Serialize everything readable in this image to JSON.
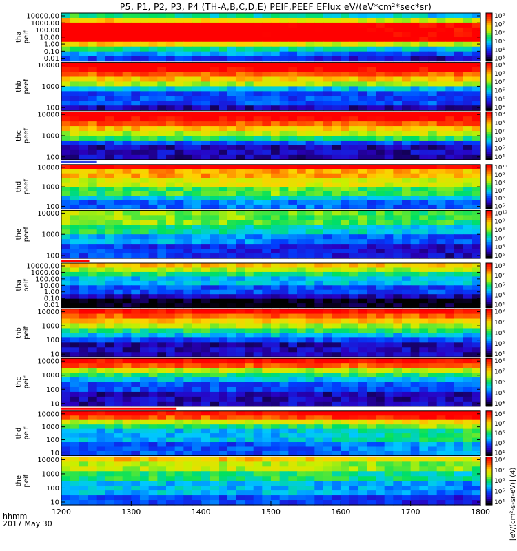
{
  "title": "P5, P1, P2, P3, P4 (TH-A,B,C,D,E) PEIF,PEEF EFlux eV/(eV*cm²*sec*sr)",
  "time_axis": {
    "label": "hhmm",
    "date": "2017 May 30",
    "ticks": [
      "1200",
      "1300",
      "1400",
      "1500",
      "1600",
      "1700",
      "1800"
    ]
  },
  "colorbar_label": "[eV/(cm²-s-sr-eV)] (4)",
  "colors": {
    "background": "#ffffff",
    "colormap": [
      "#000000",
      "#2a00c0",
      "#0040ff",
      "#00c8ff",
      "#00e060",
      "#c8f000",
      "#ffd000",
      "#ff5000",
      "#ff0000"
    ]
  },
  "chart_data": {
    "type": "heatmap",
    "x_range": [
      1200,
      1800
    ],
    "y_scale": "log",
    "panels": [
      {
        "name": "tha peif",
        "label": [
          "tha",
          "peif"
        ],
        "yticks": [
          "10000.00",
          "1000.00",
          "100.00",
          "10.00",
          "1.00",
          "0.10",
          "0.01"
        ],
        "cbar_ticks": [
          "10⁸",
          "10⁷",
          "10⁶",
          "10⁵",
          "10⁴",
          "10³"
        ],
        "profile": [
          4,
          6,
          9,
          9,
          9,
          9,
          6,
          4,
          3,
          2
        ],
        "trend": [
          0,
          -0.5,
          -1
        ],
        "bar": false
      },
      {
        "name": "thb peef",
        "label": [
          "thb",
          "peef"
        ],
        "yticks": [
          "10000",
          "1000",
          "100"
        ],
        "cbar_ticks": [
          "10⁹",
          "10⁸",
          "10⁷",
          "10⁶",
          "10⁵",
          "10⁴"
        ],
        "profile": [
          9,
          8,
          7,
          6,
          5,
          3,
          2,
          2,
          2,
          1
        ],
        "trend": [
          0,
          0,
          0
        ],
        "bar": false
      },
      {
        "name": "thc peef",
        "label": [
          "thc",
          "peef"
        ],
        "yticks": [
          "10000",
          "1000",
          "100"
        ],
        "cbar_ticks": [
          "10⁹",
          "10⁸",
          "10⁷",
          "10⁶",
          "10⁵",
          "10⁴"
        ],
        "profile": [
          9,
          8,
          7,
          6,
          5,
          4,
          2,
          1,
          1,
          1
        ],
        "trend": [
          0,
          0,
          0
        ],
        "bar": false
      },
      {
        "name": "thd peef",
        "label": [
          "thd",
          "peef"
        ],
        "yticks": [
          "10000",
          "1000",
          "100"
        ],
        "cbar_ticks": [
          "10¹⁰",
          "10⁹",
          "10⁸",
          "10⁷",
          "10⁶",
          "10⁵"
        ],
        "profile": [
          8,
          6,
          6,
          5,
          5,
          4,
          4,
          3,
          2,
          2
        ],
        "trend": [
          0,
          0.5,
          0
        ],
        "bar": true,
        "bar_end": 1250,
        "bar_color": "#3040e0"
      },
      {
        "name": "the peef",
        "label": [
          "the",
          "peef"
        ],
        "yticks": [
          "10000",
          "1000",
          "100"
        ],
        "cbar_ticks": [
          "10¹⁰",
          "10⁹",
          "10⁸",
          "10⁷",
          "10⁶",
          "10⁵"
        ],
        "profile": [
          5,
          5,
          5,
          4,
          4,
          3,
          3,
          2,
          2,
          2
        ],
        "trend": [
          0,
          -0.5,
          -1
        ],
        "bar": false
      },
      {
        "name": "tha peif",
        "label": [
          "tha",
          "peif"
        ],
        "yticks": [
          "10000.00",
          "1000.00",
          "100.00",
          "10.00",
          "1.00",
          "0.10",
          "0.01"
        ],
        "cbar_ticks": [
          "10⁸",
          "10⁷",
          "10⁶",
          "10⁵",
          "10⁴"
        ],
        "profile": [
          6,
          5,
          4,
          3,
          3,
          2,
          2,
          1,
          0,
          0
        ],
        "trend": [
          0,
          0,
          0
        ],
        "bar": true,
        "bar_end": 1240,
        "bar_color": "#ff0000"
      },
      {
        "name": "thb peif",
        "label": [
          "thb",
          "peif"
        ],
        "yticks": [
          "10000",
          "1000",
          "100",
          "10"
        ],
        "cbar_ticks": [
          "10⁸",
          "10⁷",
          "10⁶",
          "10⁵",
          "10⁴"
        ],
        "profile": [
          8,
          7,
          6,
          5,
          4,
          3,
          2,
          1,
          1,
          1
        ],
        "trend": [
          0,
          0,
          0
        ],
        "bar": false
      },
      {
        "name": "thc peif",
        "label": [
          "thc",
          "peif"
        ],
        "yticks": [
          "10000",
          "1000",
          "100",
          "10"
        ],
        "cbar_ticks": [
          "10⁸",
          "10⁷",
          "10⁶",
          "10⁵",
          "10⁴"
        ],
        "profile": [
          8,
          7,
          5,
          4,
          3,
          2,
          2,
          1,
          1,
          1
        ],
        "trend": [
          0,
          0,
          0
        ],
        "bar": false
      },
      {
        "name": "thd peif",
        "label": [
          "thd",
          "peif"
        ],
        "yticks": [
          "10000",
          "1000",
          "100",
          "10"
        ],
        "cbar_ticks": [
          "10⁸",
          "10⁷",
          "10⁶",
          "10⁵",
          "10⁴"
        ],
        "profile": [
          8,
          7,
          5,
          4,
          3,
          3,
          3,
          2,
          2,
          2
        ],
        "trend": [
          0,
          0,
          1
        ],
        "bar": true,
        "bar_end": 1365,
        "bar_color": "#ff0000"
      },
      {
        "name": "the peif",
        "label": [
          "the",
          "peif"
        ],
        "yticks": [
          "10000",
          "1000",
          "100",
          "10"
        ],
        "cbar_ticks": [
          "10⁸",
          "10⁷",
          "10⁶",
          "10⁵",
          "10⁴"
        ],
        "profile": [
          6,
          5,
          5,
          4,
          4,
          3,
          3,
          3,
          2,
          2
        ],
        "trend": [
          0,
          0,
          -0.5
        ],
        "bar": false
      }
    ]
  }
}
